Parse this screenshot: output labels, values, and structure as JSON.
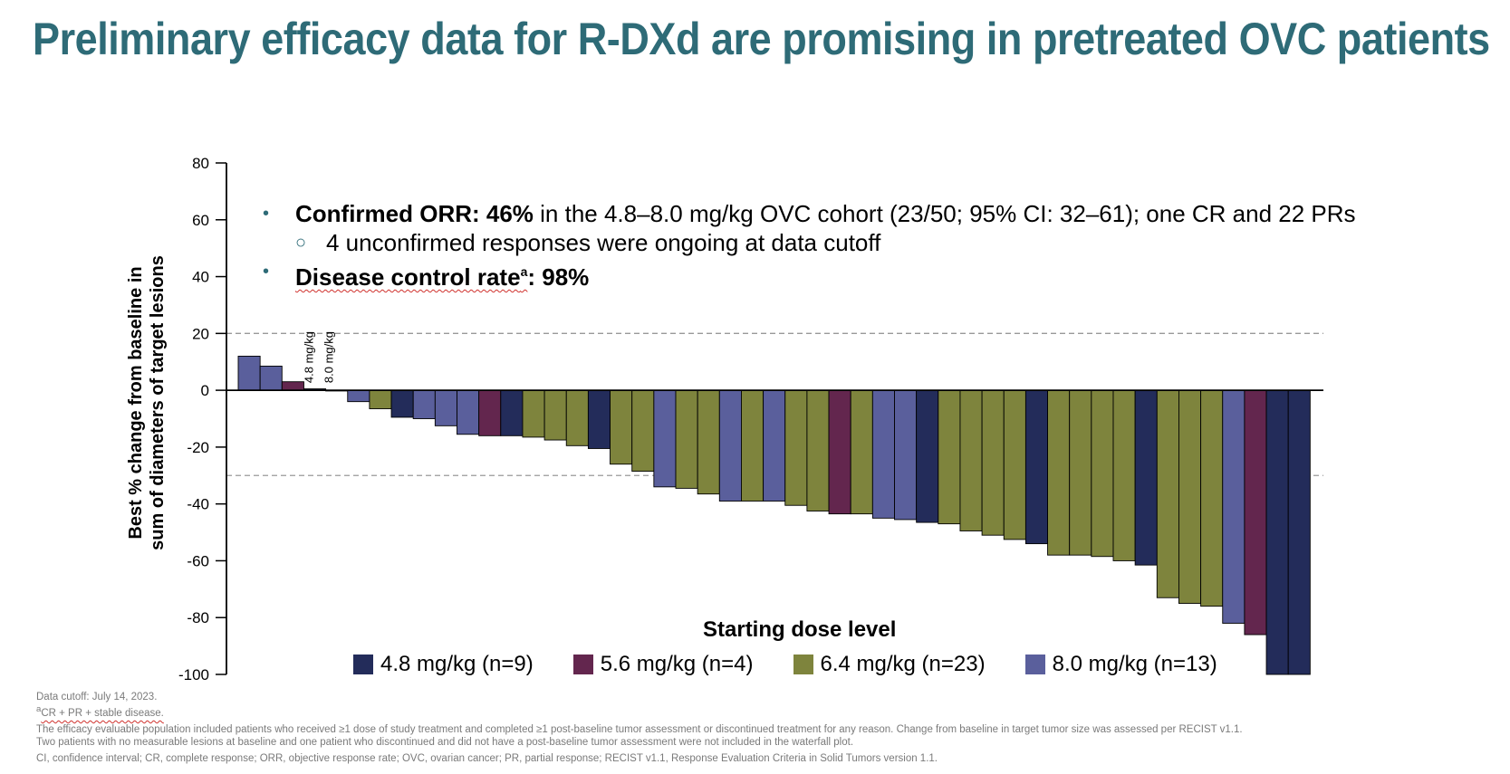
{
  "title": "Preliminary efficacy data for R-DXd are promising in pretreated OVC patients",
  "bullets": {
    "b1_bold": "Confirmed ORR: 46%",
    "b1_rest": " in the 4.8–8.0 mg/kg OVC cohort (23/50; 95% CI: 32–61); one CR and 22 PRs",
    "b2": "4 unconfirmed responses were ongoing at data cutoff",
    "b3_bold_a": "Disease control rate",
    "b3_sup": "a",
    "b3_bold_b": ": 98%"
  },
  "colors": {
    "title": "#2e6b77",
    "4.8 mg/kg": "#232c5a",
    "5.6 mg/kg": "#63264e",
    "6.4 mg/kg": "#7e843d",
    "8.0 mg/kg": "#5a5f9c"
  },
  "footnotes": {
    "line1": "Data cutoff: July 14, 2023.",
    "line2_sup": "a",
    "line2": "CR + PR + stable disease.",
    "line3": "The efficacy evaluable population included patients who received ≥1 dose of study treatment and completed ≥1 post-baseline tumor assessment or discontinued treatment for any reason. Change from baseline in target tumor size was assessed per RECIST v1.1.",
    "line4": "Two patients with no measurable lesions at baseline and one patient who discontinued and did not have a post-baseline tumor assessment were not included in the waterfall plot.",
    "line5": "CI, confidence interval; CR, complete response; ORR, objective response rate; OVC, ovarian cancer; PR, partial response; RECIST v1.1, Response Evaluation Criteria in Solid Tumors version 1.1."
  },
  "chart_data": {
    "type": "bar",
    "chart_subtype": "waterfall",
    "ylabel_line1": "Best % change from baseline in",
    "ylabel_line2": "sum of diameters of target lesions",
    "ylim": [
      -100,
      80
    ],
    "yticks": [
      "80",
      "60",
      "40",
      "20",
      "0",
      "-20",
      "-40",
      "-60",
      "-80",
      "-100"
    ],
    "reference_lines": [
      20,
      -30
    ],
    "legend_title": "Starting dose level",
    "legend": [
      {
        "key": "4.8 mg/kg",
        "label": "4.8 mg/kg (n=9)"
      },
      {
        "key": "5.6 mg/kg",
        "label": "5.6 mg/kg (n=4)"
      },
      {
        "key": "6.4 mg/kg",
        "label": "6.4 mg/kg (n=23)"
      },
      {
        "key": "8.0 mg/kg",
        "label": "8.0 mg/kg (n=13)"
      }
    ],
    "annotations": [
      "4.8 mg/kg",
      "8.0 mg/kg"
    ],
    "bars": [
      {
        "dose": "8.0 mg/kg",
        "value": 12
      },
      {
        "dose": "8.0 mg/kg",
        "value": 8.5
      },
      {
        "dose": "5.6 mg/kg",
        "value": 3
      },
      {
        "dose": "4.8 mg/kg",
        "value": 0.5
      },
      {
        "dose": "8.0 mg/kg",
        "value": 0
      },
      {
        "dose": "8.0 mg/kg",
        "value": -4
      },
      {
        "dose": "6.4 mg/kg",
        "value": -6.5
      },
      {
        "dose": "4.8 mg/kg",
        "value": -9.5
      },
      {
        "dose": "8.0 mg/kg",
        "value": -10
      },
      {
        "dose": "8.0 mg/kg",
        "value": -12.5
      },
      {
        "dose": "8.0 mg/kg",
        "value": -15.5
      },
      {
        "dose": "5.6 mg/kg",
        "value": -16
      },
      {
        "dose": "4.8 mg/kg",
        "value": -16
      },
      {
        "dose": "6.4 mg/kg",
        "value": -16.5
      },
      {
        "dose": "6.4 mg/kg",
        "value": -17.5
      },
      {
        "dose": "6.4 mg/kg",
        "value": -19.5
      },
      {
        "dose": "4.8 mg/kg",
        "value": -20.5
      },
      {
        "dose": "6.4 mg/kg",
        "value": -26
      },
      {
        "dose": "6.4 mg/kg",
        "value": -28.5
      },
      {
        "dose": "8.0 mg/kg",
        "value": -34
      },
      {
        "dose": "6.4 mg/kg",
        "value": -34.5
      },
      {
        "dose": "6.4 mg/kg",
        "value": -36.5
      },
      {
        "dose": "8.0 mg/kg",
        "value": -39
      },
      {
        "dose": "6.4 mg/kg",
        "value": -39
      },
      {
        "dose": "8.0 mg/kg",
        "value": -39
      },
      {
        "dose": "6.4 mg/kg",
        "value": -40.5
      },
      {
        "dose": "6.4 mg/kg",
        "value": -42.5
      },
      {
        "dose": "5.6 mg/kg",
        "value": -43.5
      },
      {
        "dose": "6.4 mg/kg",
        "value": -43.5
      },
      {
        "dose": "8.0 mg/kg",
        "value": -45
      },
      {
        "dose": "8.0 mg/kg",
        "value": -45.5
      },
      {
        "dose": "4.8 mg/kg",
        "value": -46.5
      },
      {
        "dose": "6.4 mg/kg",
        "value": -47
      },
      {
        "dose": "6.4 mg/kg",
        "value": -49.5
      },
      {
        "dose": "6.4 mg/kg",
        "value": -51
      },
      {
        "dose": "6.4 mg/kg",
        "value": -52.5
      },
      {
        "dose": "4.8 mg/kg",
        "value": -54
      },
      {
        "dose": "6.4 mg/kg",
        "value": -58
      },
      {
        "dose": "6.4 mg/kg",
        "value": -58
      },
      {
        "dose": "6.4 mg/kg",
        "value": -58.5
      },
      {
        "dose": "6.4 mg/kg",
        "value": -60
      },
      {
        "dose": "4.8 mg/kg",
        "value": -61.5
      },
      {
        "dose": "6.4 mg/kg",
        "value": -73
      },
      {
        "dose": "6.4 mg/kg",
        "value": -75
      },
      {
        "dose": "6.4 mg/kg",
        "value": -76
      },
      {
        "dose": "8.0 mg/kg",
        "value": -82
      },
      {
        "dose": "5.6 mg/kg",
        "value": -86
      },
      {
        "dose": "4.8 mg/kg",
        "value": -100
      },
      {
        "dose": "4.8 mg/kg",
        "value": -100
      }
    ]
  }
}
